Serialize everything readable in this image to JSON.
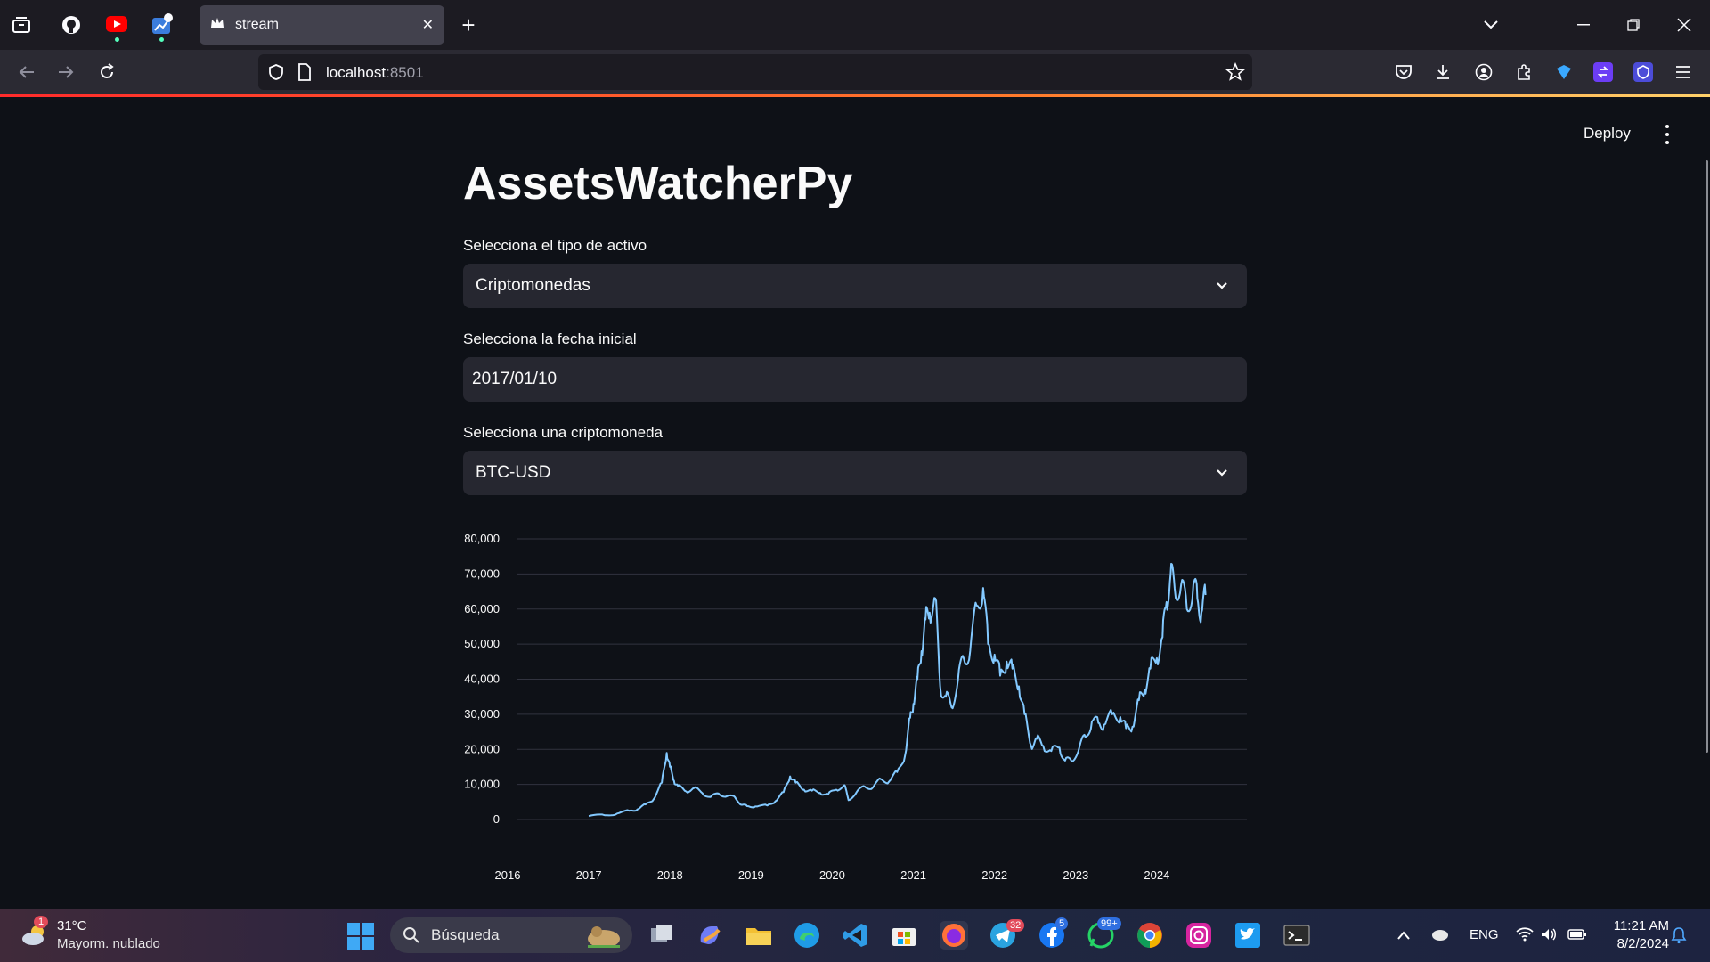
{
  "browser": {
    "tab_title": "stream",
    "url_host": "localhost",
    "url_port": ":8501"
  },
  "app": {
    "deploy_label": "Deploy",
    "title": "AssetsWatcherPy",
    "asset_type_label": "Selecciona el tipo de activo",
    "asset_type_value": "Criptomonedas",
    "start_date_label": "Selecciona la fecha inicial",
    "start_date_value": "2017/01/10",
    "crypto_label": "Selecciona una criptomoneda",
    "crypto_value": "BTC-USD"
  },
  "chart_data": {
    "type": "line",
    "title": "",
    "xlabel": "",
    "ylabel": "",
    "x_ticks": [
      "2016",
      "2017",
      "2018",
      "2019",
      "2020",
      "2021",
      "2022",
      "2023",
      "2024"
    ],
    "y_ticks": [
      "0",
      "10,000",
      "20,000",
      "30,000",
      "40,000",
      "50,000",
      "60,000",
      "70,000",
      "80,000"
    ],
    "xlim": [
      2016.0,
      2025.0
    ],
    "ylim": [
      0,
      80000
    ],
    "grid": true,
    "line_color": "#83c9ff",
    "series": [
      {
        "x": [
          2017.0,
          2017.2,
          2017.35,
          2017.5,
          2017.6,
          2017.7,
          2017.8,
          2017.9,
          2017.96,
          2018.0,
          2018.05,
          2018.1,
          2018.2,
          2018.3,
          2018.4,
          2018.5,
          2018.6,
          2018.7,
          2018.8,
          2018.88,
          2018.95,
          2019.05,
          2019.2,
          2019.3,
          2019.4,
          2019.48,
          2019.55,
          2019.65,
          2019.75,
          2019.85,
          2019.95,
          2020.05,
          2020.15,
          2020.2,
          2020.3,
          2020.4,
          2020.5,
          2020.6,
          2020.7,
          2020.8,
          2020.9,
          2020.96,
          2021.0,
          2021.05,
          2021.1,
          2021.15,
          2021.2,
          2021.27,
          2021.33,
          2021.4,
          2021.47,
          2021.55,
          2021.62,
          2021.7,
          2021.78,
          2021.86,
          2021.92,
          2022.0,
          2022.07,
          2022.15,
          2022.22,
          2022.3,
          2022.37,
          2022.45,
          2022.52,
          2022.6,
          2022.7,
          2022.8,
          2022.87,
          2022.95,
          2023.05,
          2023.12,
          2023.2,
          2023.28,
          2023.35,
          2023.45,
          2023.55,
          2023.62,
          2023.7,
          2023.78,
          2023.85,
          2023.92,
          2024.0,
          2024.07,
          2024.12,
          2024.17,
          2024.22,
          2024.3,
          2024.37,
          2024.45,
          2024.5,
          2024.55,
          2024.6
        ],
        "y": [
          1000,
          1200,
          1700,
          2500,
          2900,
          4300,
          5800,
          10500,
          19000,
          15000,
          11000,
          9500,
          8000,
          9000,
          7500,
          6400,
          7400,
          6600,
          6400,
          4200,
          3800,
          3700,
          4000,
          5200,
          7800,
          12300,
          10500,
          8500,
          8200,
          7600,
          7200,
          8500,
          9800,
          5500,
          7800,
          9400,
          9100,
          11500,
          10800,
          13500,
          18500,
          29000,
          33000,
          40000,
          48000,
          57000,
          59000,
          63000,
          38000,
          35000,
          32000,
          40000,
          46000,
          48000,
          61000,
          66000,
          50000,
          47000,
          41000,
          45000,
          43000,
          38000,
          30000,
          21000,
          23000,
          21000,
          19500,
          20500,
          16800,
          16600,
          21000,
          23500,
          28000,
          27500,
          27000,
          30000,
          29200,
          26000,
          26500,
          34000,
          37000,
          43000,
          46000,
          52000,
          62000,
          70000,
          66000,
          67000,
          60000,
          67000,
          63000,
          59000,
          64000
        ]
      }
    ]
  },
  "taskbar": {
    "weather_badge": "1",
    "weather_temp": "31°C",
    "weather_desc": "Mayorm. nublado",
    "search_placeholder": "Búsqueda",
    "telegram_badge": "32",
    "facebook_badge": "5",
    "whatsapp_badge": "99+",
    "language": "ENG",
    "time": "11:21 AM",
    "date": "8/2/2024"
  }
}
